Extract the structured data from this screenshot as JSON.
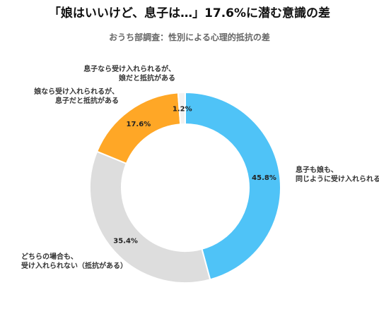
{
  "title": "「娘はいいけど、息子は…」17.6%に潜む意識の差",
  "subtitle": "おうち部調査：性別による心理的抵抗の差",
  "chart_data": {
    "type": "pie",
    "donut": true,
    "slices": [
      {
        "label_lines": [
          "息子も娘も、",
          "同じように受け入れられる"
        ],
        "value": 45.8,
        "value_label": "45.8%",
        "color": "#4fc3f7"
      },
      {
        "label_lines": [
          "どちらの場合も、",
          "受け入れられない（抵抗がある）"
        ],
        "value": 35.4,
        "value_label": "35.4%",
        "color": "#dddddd"
      },
      {
        "label_lines": [
          "娘なら受け入れられるが、",
          "息子だと抵抗がある"
        ],
        "value": 17.6,
        "value_label": "17.6%",
        "color": "#ffa726"
      },
      {
        "label_lines": [
          "息子なら受け入れられるが、",
          "娘だと抵抗がある"
        ],
        "value": 1.2,
        "value_label": "1.2%",
        "color": "#f2f2f2"
      }
    ]
  }
}
